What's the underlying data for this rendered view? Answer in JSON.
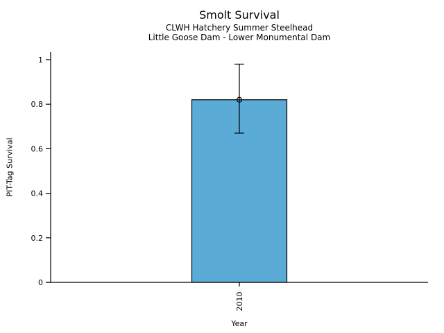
{
  "chart_data": {
    "type": "bar",
    "title": "Smolt Survival",
    "subtitle1": "CLWH Hatchery Summer Steelhead",
    "subtitle2": "Little Goose Dam - Lower Monumental Dam",
    "xlabel": "Year",
    "ylabel": "PIT-Tag Survival",
    "categories": [
      "2010"
    ],
    "values": [
      0.82
    ],
    "error_low": [
      0.67
    ],
    "error_high": [
      0.98
    ],
    "ylim": [
      0,
      1
    ],
    "yticks": [
      0,
      0.2,
      0.4,
      0.6,
      0.8,
      1
    ],
    "ytick_labels": [
      "0",
      "0.2",
      "0.4",
      "0.6",
      "0.8",
      "1"
    ],
    "grid": false,
    "legend": "none",
    "colors": {
      "bar_fill": "#5AABD5",
      "bar_edge": "#000000",
      "axis": "#000000",
      "text": "#000000",
      "background": "#FFFFFF"
    }
  }
}
